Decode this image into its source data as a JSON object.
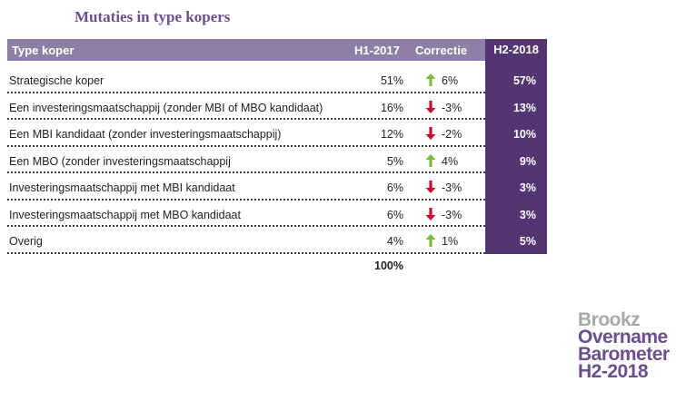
{
  "title": "Mutaties in type kopers",
  "headers": {
    "type": "Type koper",
    "h1": "H1-2017",
    "corr": "Correctie",
    "h2": "H2-2018"
  },
  "rows": [
    {
      "name": "Strategische koper",
      "h1": "51%",
      "dir": "up",
      "corr": "6%",
      "h2": "57%"
    },
    {
      "name": "Een investeringsmaatschappij  (zonder MBI of MBO kandidaat)",
      "h1": "16%",
      "dir": "down",
      "corr": "-3%",
      "h2": "13%"
    },
    {
      "name": "Een MBI kandidaat (zonder investeringsmaatschappij)",
      "h1": "12%",
      "dir": "down",
      "corr": "-2%",
      "h2": "10%"
    },
    {
      "name": "Een MBO (zonder investeringsmaatschappij",
      "h1": "5%",
      "dir": "up",
      "corr": "4%",
      "h2": "9%"
    },
    {
      "name": "Investeringsmaatschappij met MBI kandidaat",
      "h1": "6%",
      "dir": "down",
      "corr": "-3%",
      "h2": "3%"
    },
    {
      "name": "Investeringsmaatschappij met MBO kandidaat",
      "h1": "6%",
      "dir": "down",
      "corr": "-3%",
      "h2": "3%"
    },
    {
      "name": "Overig",
      "h1": "4%",
      "dir": "up",
      "corr": "1%",
      "h2": "5%"
    }
  ],
  "total": "100%",
  "brand": {
    "line1": "Brookz",
    "line2": "Overname",
    "line3": "Barometer",
    "line4": "H2-2018"
  },
  "colors": {
    "up": "#7dbb3a",
    "down": "#c8102e",
    "accent": "#533671",
    "header": "#8e7fa6"
  }
}
